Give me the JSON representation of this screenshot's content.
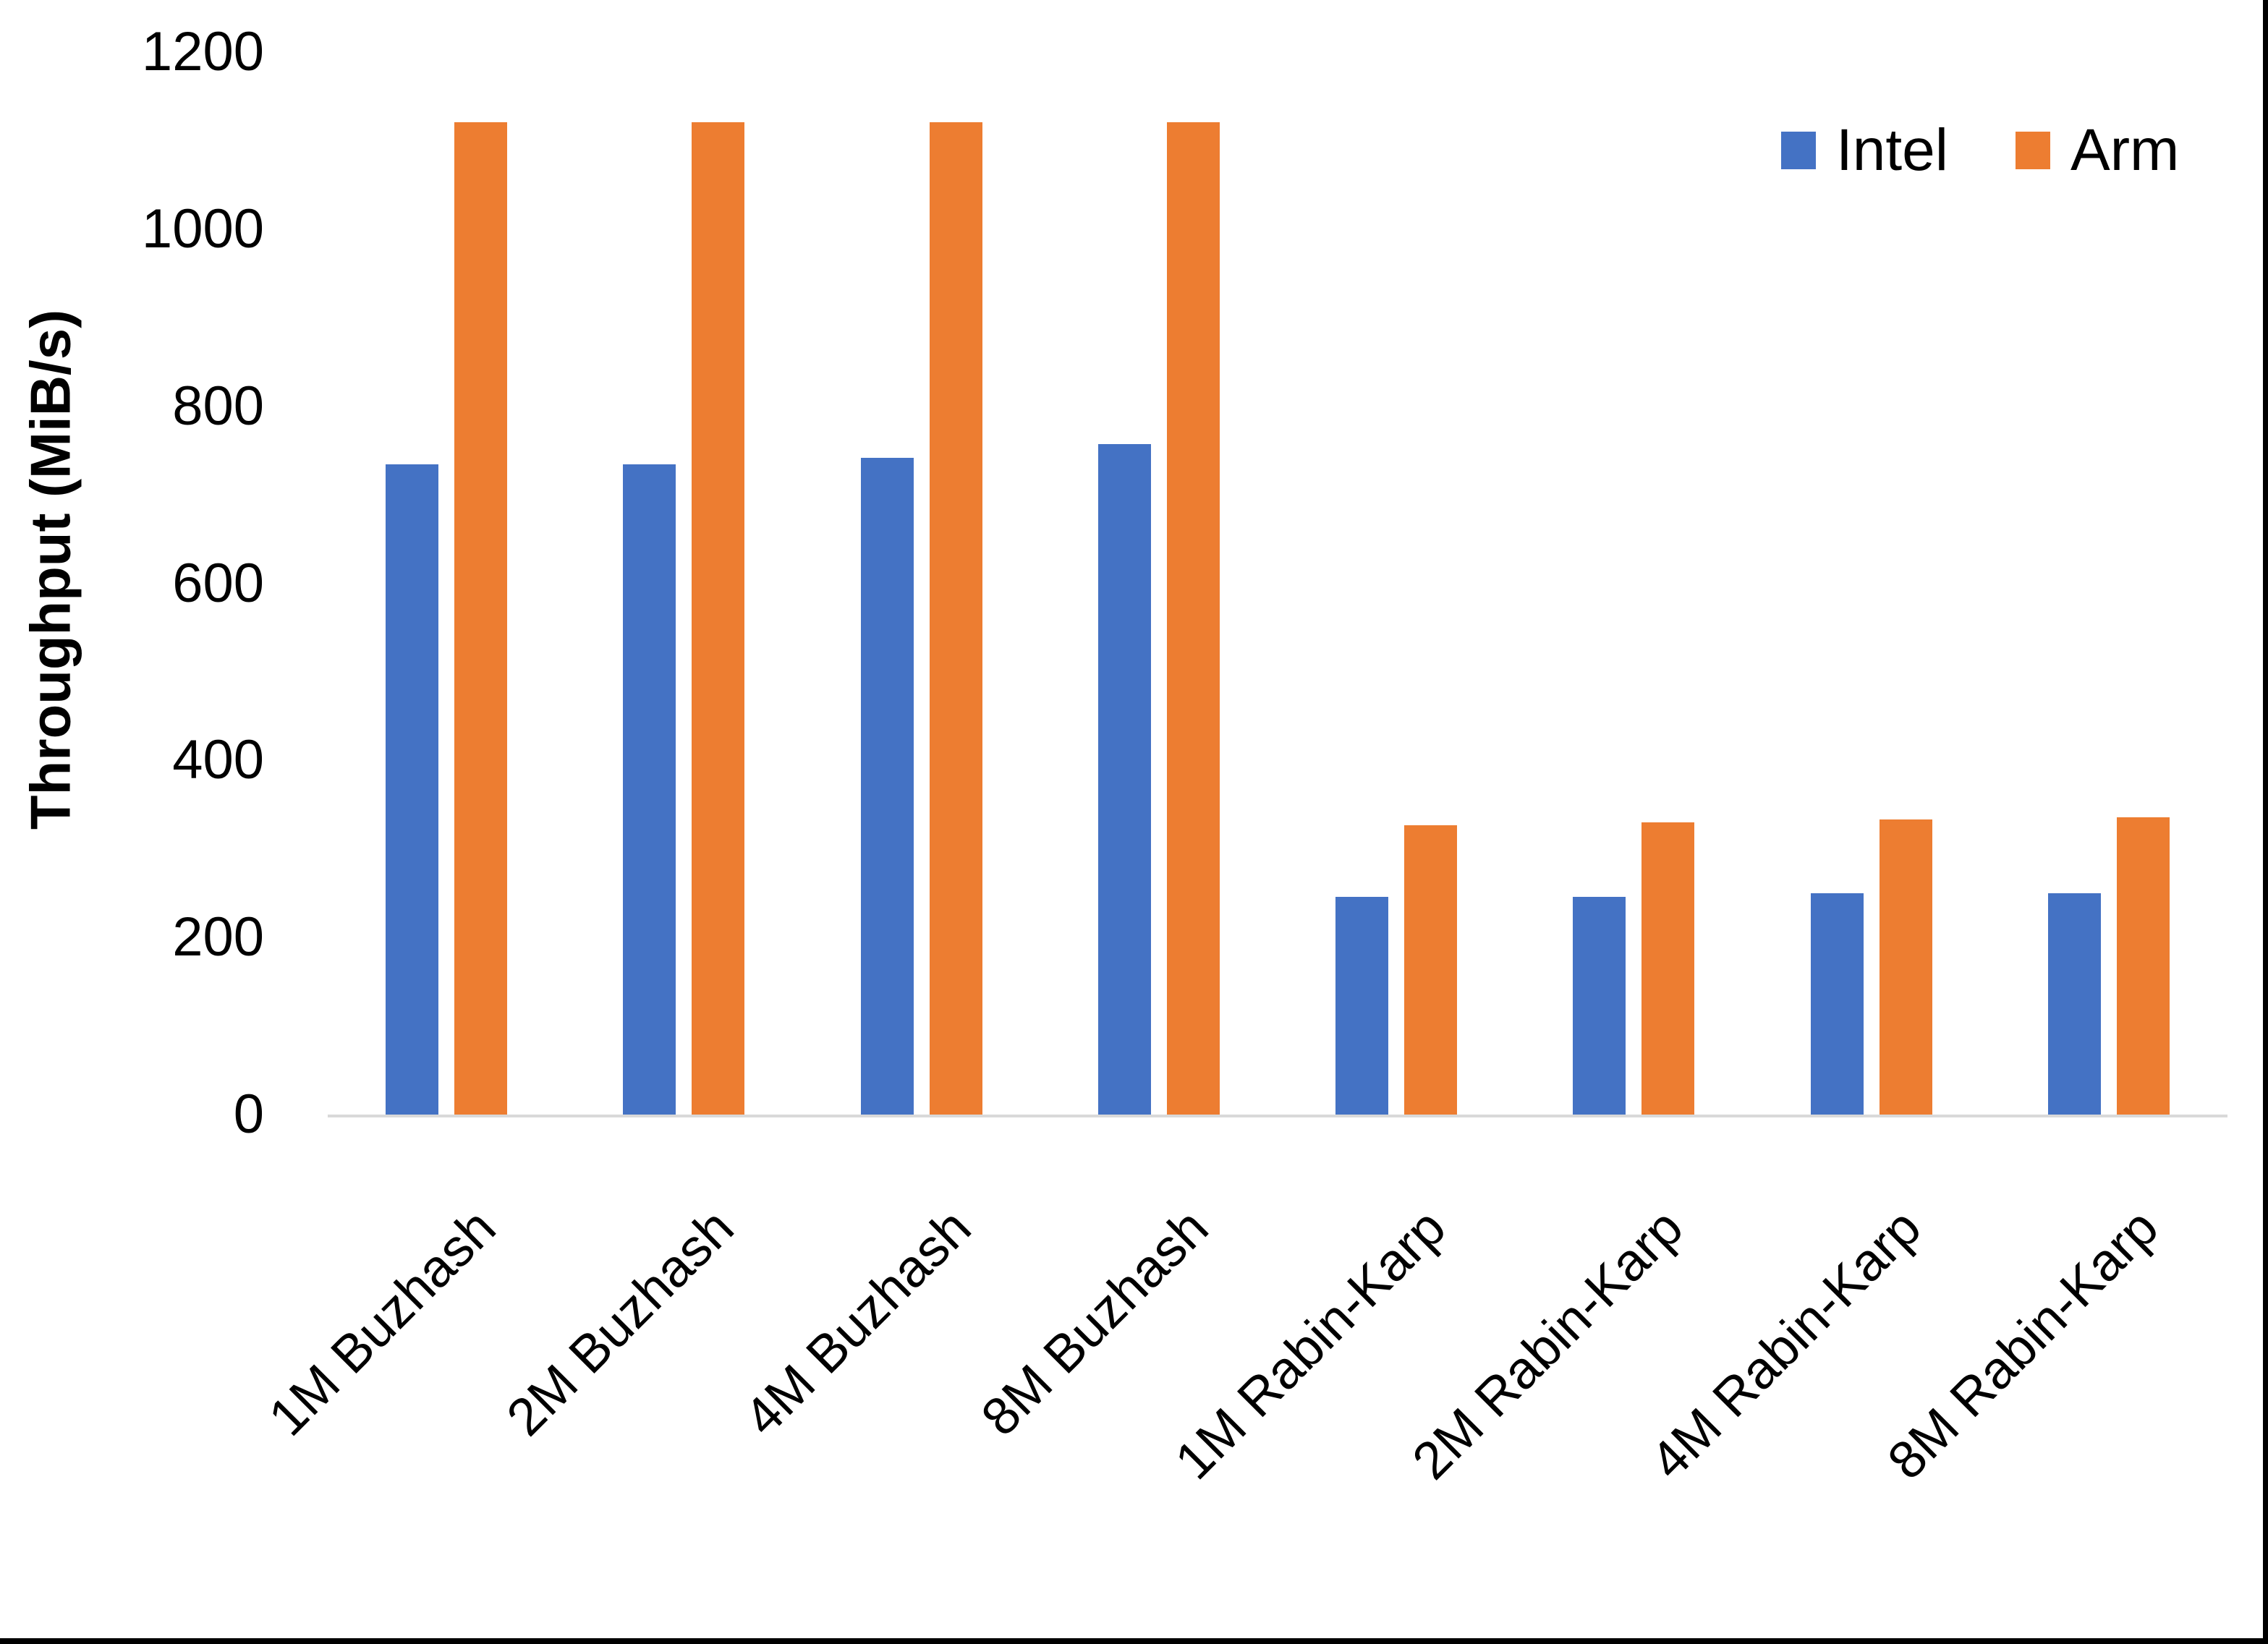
{
  "chart_data": {
    "type": "bar",
    "title": "",
    "ylabel": "Throughput (MiB/s)",
    "xlabel": "",
    "categories": [
      "1M Buzhash",
      "2M Buzhash",
      "4M Buzhash",
      "8M Buzhash",
      "1M Rabin-Karp",
      "2M Rabin-Karp",
      "4M Rabin-Karp",
      "8M Rabin-Karp"
    ],
    "series": [
      {
        "name": "Intel",
        "color": "#4472C4",
        "values": [
          734,
          734,
          742,
          757,
          246,
          246,
          250,
          250
        ]
      },
      {
        "name": "Arm",
        "color": "#ED7D31",
        "values": [
          1121,
          1121,
          1121,
          1121,
          327,
          330,
          333,
          336
        ]
      }
    ],
    "yticks": [
      0,
      200,
      400,
      600,
      800,
      1000,
      1200
    ],
    "ylim": [
      0,
      1200
    ],
    "grid": false,
    "legend_position": "top-right",
    "axis_line_color": "#d9d9d9",
    "text_color": "#000000"
  },
  "legend": {
    "items": [
      {
        "label": "Intel",
        "color": "#4472C4"
      },
      {
        "label": "Arm",
        "color": "#ED7D31"
      }
    ]
  }
}
